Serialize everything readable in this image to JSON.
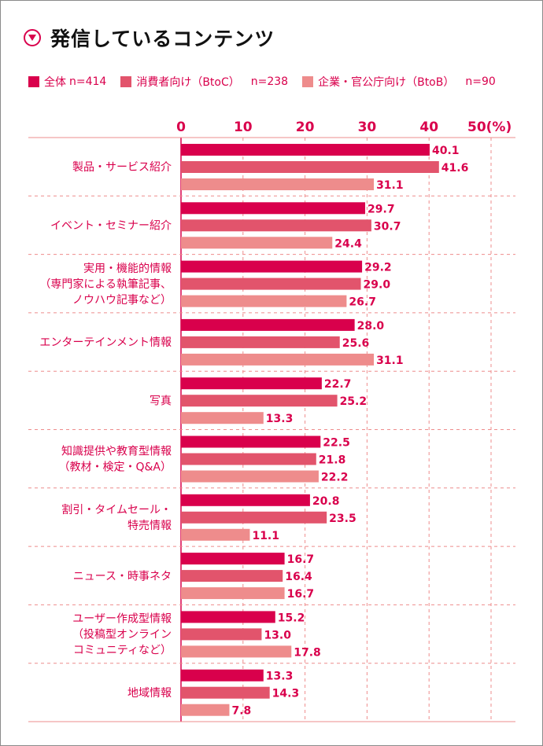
{
  "title": "発信しているコンテンツ",
  "legend": [
    {
      "label": "全体",
      "n": "n=414",
      "color": "#d9004c"
    },
    {
      "label": "消費者向け（BtoC）",
      "n": "n=238",
      "color": "#e2546c"
    },
    {
      "label": "企業・官公庁向け（BtoB）",
      "n": "n=90",
      "color": "#ee8c8c"
    }
  ],
  "chart_data": {
    "type": "bar",
    "orientation": "horizontal",
    "x_ticks": [
      "0",
      "10",
      "20",
      "30",
      "40",
      "50(%)"
    ],
    "xlim": [
      0,
      50
    ],
    "grid": true,
    "categories": [
      [
        "製品・サービス紹介"
      ],
      [
        "イベント・セミナー紹介"
      ],
      [
        "実用・機能的情報",
        "（専門家による執筆記事、",
        "ノウハウ記事など）"
      ],
      [
        "エンターテインメント情報"
      ],
      [
        "写真"
      ],
      [
        "知識提供や教育型情報",
        "（教材・検定・Q&A）"
      ],
      [
        "割引・タイムセール・",
        "特売情報"
      ],
      [
        "ニュース・時事ネタ"
      ],
      [
        "ユーザー作成型情報",
        "（投稿型オンライン",
        "コミュニティなど）"
      ],
      [
        "地域情報"
      ]
    ],
    "series": [
      {
        "name": "全体",
        "color": "#d9004c",
        "values": [
          40.1,
          29.7,
          29.2,
          28.0,
          22.7,
          22.5,
          20.8,
          16.7,
          15.2,
          13.3
        ],
        "labels": [
          "40.1",
          "29.7",
          "29.2",
          "28.0",
          "22.7",
          "22.5",
          "20.8",
          "16.7",
          "15.2",
          "13.3"
        ]
      },
      {
        "name": "消費者向け（BtoC）",
        "color": "#e2546c",
        "values": [
          41.6,
          30.7,
          29.0,
          25.6,
          25.2,
          21.8,
          23.5,
          16.4,
          13.0,
          14.3
        ],
        "labels": [
          "41.6",
          "30.7",
          "29.0",
          "25.6",
          "25.2",
          "21.8",
          "23.5",
          "16.4",
          "13.0",
          "14.3"
        ]
      },
      {
        "name": "企業・官公庁向け（BtoB）",
        "color": "#ee8c8c",
        "values": [
          31.1,
          24.4,
          26.7,
          31.1,
          13.3,
          22.2,
          11.1,
          16.7,
          17.8,
          7.8
        ],
        "labels": [
          "31.1",
          "24.4",
          "26.7",
          "31.1",
          "13.3",
          "22.2",
          "11.1",
          "16.7",
          "17.8",
          "7.8"
        ]
      }
    ]
  }
}
